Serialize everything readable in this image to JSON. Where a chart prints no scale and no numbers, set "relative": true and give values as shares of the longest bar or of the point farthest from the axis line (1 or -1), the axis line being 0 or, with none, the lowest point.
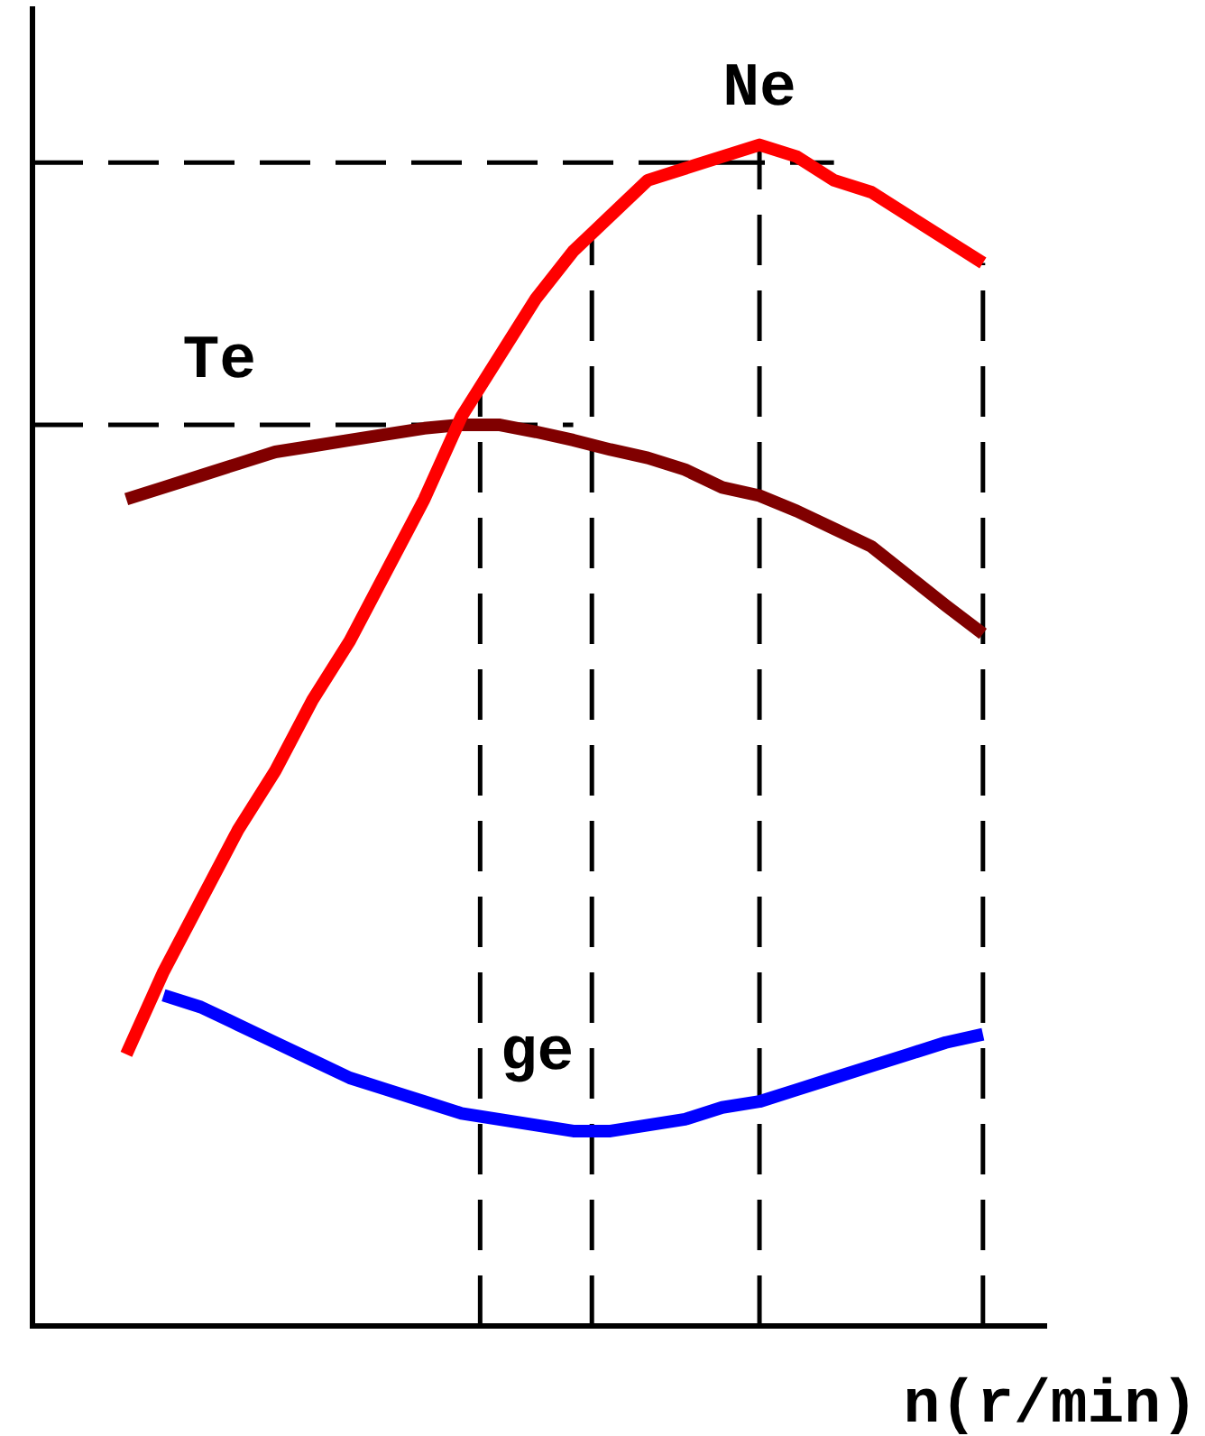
{
  "chart_data": {
    "type": "line",
    "relative": true,
    "xlabel": "n(r/min)",
    "grid": false,
    "legend": false,
    "marker": "none",
    "line_style": "solid",
    "categories": [
      null,
      null,
      null,
      null,
      null,
      null,
      null,
      null,
      null,
      null,
      null,
      null,
      null,
      null,
      null,
      null,
      null,
      null,
      null,
      null,
      null,
      null,
      null,
      null
    ],
    "series": [
      {
        "name": "Ne",
        "color": "#ff0000",
        "values": [
          0.23,
          0.3,
          0.36,
          0.42,
          0.47,
          0.53,
          0.58,
          0.64,
          0.7,
          0.77,
          0.82,
          0.87,
          0.91,
          0.94,
          0.97,
          0.98,
          0.99,
          1.0,
          0.99,
          0.97,
          0.96,
          0.94,
          0.92,
          0.9
        ]
      },
      {
        "name": "Te",
        "color": "#800000",
        "values": [
          0.7,
          0.71,
          0.72,
          0.73,
          0.74,
          0.745,
          0.75,
          0.755,
          0.76,
          0.763,
          0.763,
          0.757,
          0.75,
          0.742,
          0.735,
          0.725,
          0.71,
          0.703,
          0.69,
          0.675,
          0.66,
          0.635,
          0.61,
          0.586
        ]
      },
      {
        "name": "ge",
        "color": "#0000ff",
        "values": [
          null,
          0.28,
          0.27,
          0.255,
          0.24,
          0.225,
          0.21,
          0.2,
          0.19,
          0.18,
          0.175,
          0.17,
          0.165,
          0.165,
          0.17,
          0.175,
          0.185,
          0.19,
          0.2,
          0.21,
          0.22,
          0.23,
          0.24,
          0.247
        ]
      }
    ],
    "ref_lines": [
      {
        "axis": "y",
        "value": 0.985,
        "color": "#000000",
        "line_style": "dashed"
      },
      {
        "axis": "y",
        "value": 0.763,
        "color": "#000000",
        "line_style": "dashed"
      }
    ]
  }
}
